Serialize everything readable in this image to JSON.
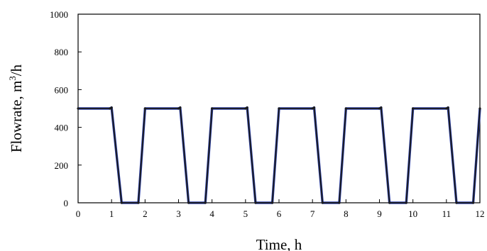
{
  "chart_data": {
    "type": "line",
    "title": "",
    "xlabel": "Time, h",
    "ylabel_prefix": "Flowrate, m",
    "ylabel_sup": "3",
    "ylabel_suffix": "/h",
    "xlim": [
      0,
      12
    ],
    "ylim": [
      0,
      1000
    ],
    "x_ticks": [
      0,
      1,
      2,
      3,
      4,
      5,
      6,
      7,
      8,
      9,
      10,
      11,
      12
    ],
    "y_ticks": [
      0,
      200,
      400,
      600,
      800,
      1000
    ],
    "grid": false,
    "legend": "none",
    "colors": {
      "line_a": "#1a1a1a",
      "line_b": "#2b3fa8"
    },
    "series": [
      {
        "x": [
          0,
          0.95,
          1.0,
          1.3,
          1.8,
          2.0,
          3.0,
          3.05,
          3.3,
          3.8,
          4.0,
          5.0,
          5.05,
          5.3,
          5.8,
          6.0,
          7.0,
          7.05,
          7.3,
          7.8,
          8.0,
          9.0,
          9.05,
          9.3,
          9.8,
          10.0,
          11.0,
          11.05,
          11.3,
          11.8,
          12.0
        ],
        "y": [
          500,
          500,
          505,
          0,
          0,
          500,
          500,
          505,
          0,
          0,
          500,
          500,
          505,
          0,
          0,
          500,
          500,
          505,
          0,
          0,
          500,
          500,
          505,
          0,
          0,
          500,
          500,
          505,
          0,
          0,
          500
        ]
      }
    ]
  }
}
